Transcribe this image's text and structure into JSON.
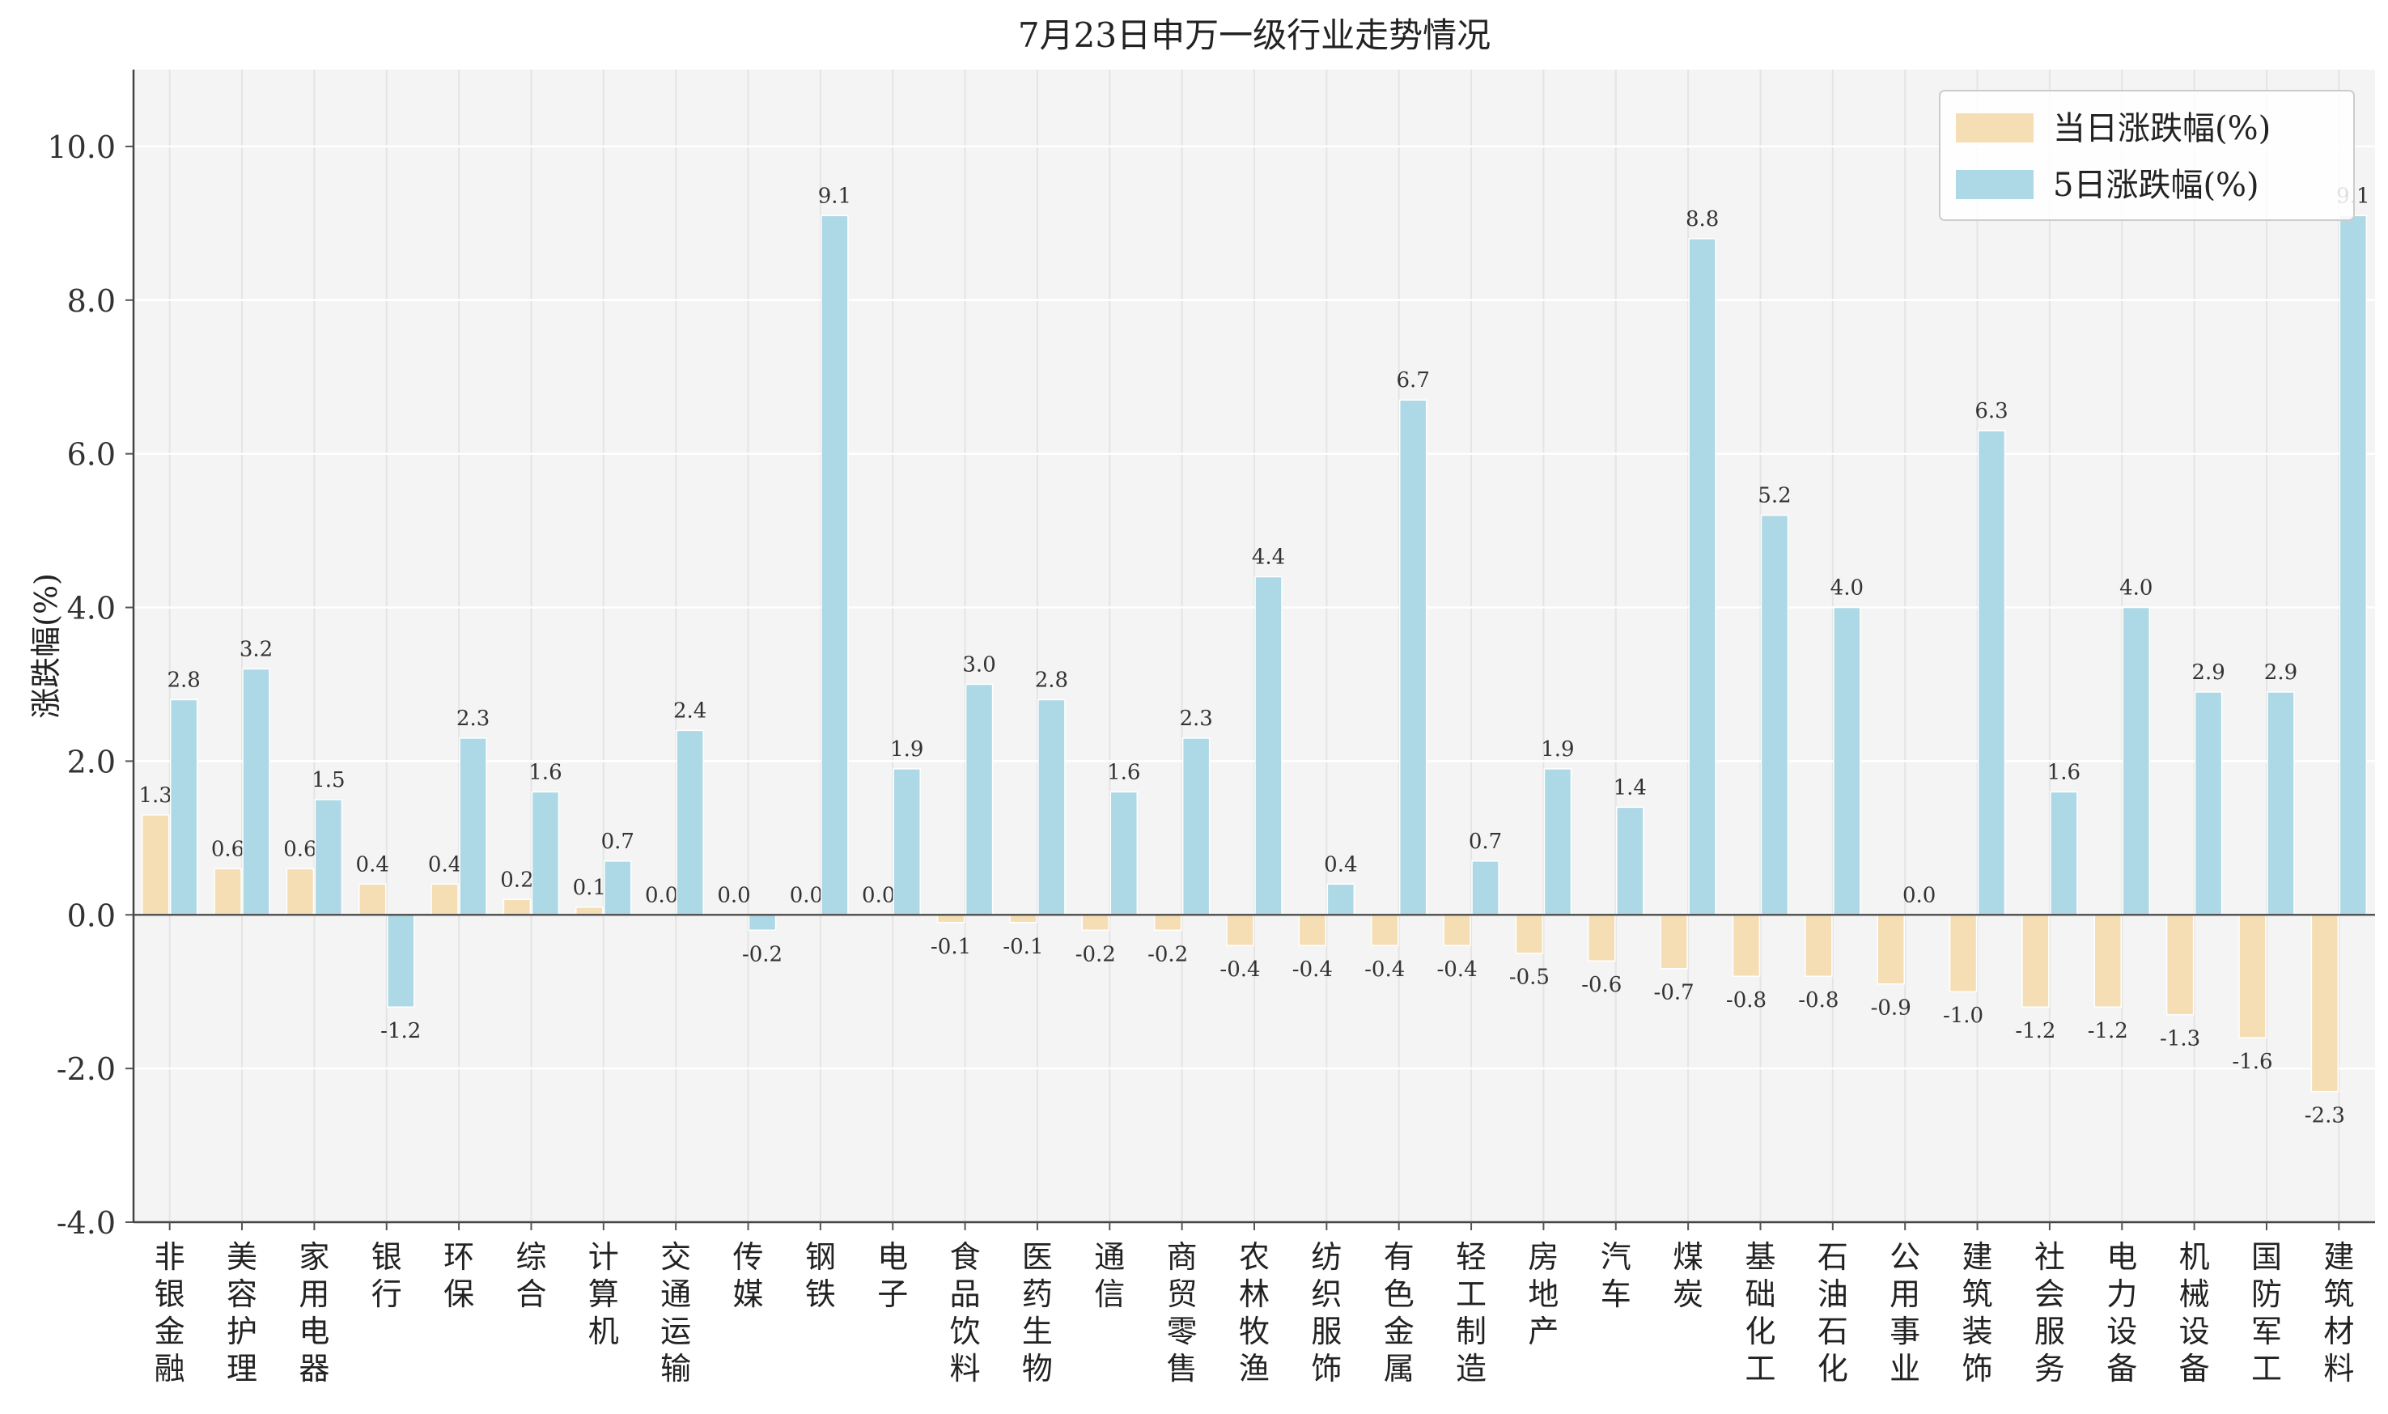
{
  "chart_data": {
    "type": "bar",
    "title": "7月23日申万一级行业走势情况",
    "xlabel": "",
    "ylabel": "涨跌幅(%)",
    "ylim": [
      -4,
      11
    ],
    "yticks": [
      -4,
      -2,
      0,
      2,
      4,
      6,
      8,
      10
    ],
    "grid": true,
    "legend_position": "top-right",
    "categories": [
      "非银金融",
      "美容护理",
      "家用电器",
      "银行",
      "环保",
      "综合",
      "计算机",
      "交通运输",
      "传媒",
      "钢铁",
      "电子",
      "食品饮料",
      "医药生物",
      "通信",
      "商贸零售",
      "农林牧渔",
      "纺织服饰",
      "有色金属",
      "轻工制造",
      "房地产",
      "汽车",
      "煤炭",
      "基础化工",
      "石油石化",
      "公用事业",
      "建筑装饰",
      "社会服务",
      "电力设备",
      "机械设备",
      "国防军工",
      "建筑材料"
    ],
    "series": [
      {
        "name": "当日涨跌幅(%)",
        "color": "#f5deb3",
        "values": [
          1.3,
          0.6,
          0.6,
          0.4,
          0.4,
          0.2,
          0.1,
          0.0,
          0.0,
          0.0,
          0.0,
          -0.1,
          -0.1,
          -0.2,
          -0.2,
          -0.4,
          -0.4,
          -0.4,
          -0.4,
          -0.5,
          -0.6,
          -0.7,
          -0.8,
          -0.8,
          -0.9,
          -1.0,
          -1.2,
          -1.2,
          -1.3,
          -1.6,
          -2.3
        ]
      },
      {
        "name": "5日涨跌幅(%)",
        "color": "#add8e6",
        "values": [
          2.8,
          3.2,
          1.5,
          -1.2,
          2.3,
          1.6,
          0.7,
          2.4,
          -0.2,
          9.1,
          1.9,
          3.0,
          2.8,
          1.6,
          2.3,
          4.4,
          0.4,
          6.7,
          0.7,
          1.9,
          1.4,
          8.8,
          5.2,
          4.0,
          0.0,
          6.3,
          1.6,
          4.0,
          2.9,
          2.9,
          9.1
        ]
      }
    ]
  }
}
